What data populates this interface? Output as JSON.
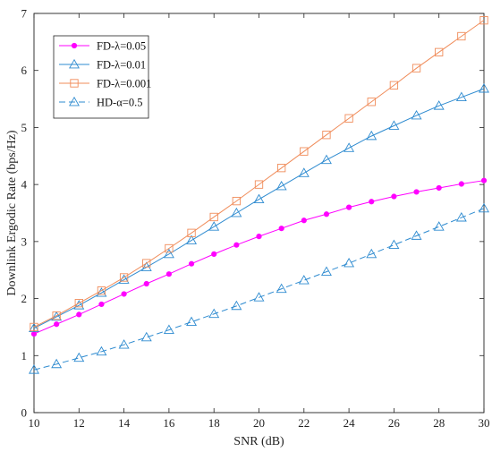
{
  "chart_data": {
    "type": "line",
    "xlabel": "SNR (dB)",
    "ylabel": "Downlink Ergodic Rate (bps/Hz)",
    "xlim": [
      10,
      30
    ],
    "ylim": [
      0,
      7
    ],
    "xticks": [
      "10",
      "12",
      "14",
      "16",
      "18",
      "20",
      "22",
      "24",
      "26",
      "28",
      "30"
    ],
    "yticks": [
      "0",
      "1",
      "2",
      "3",
      "4",
      "5",
      "6",
      "7"
    ],
    "grid": false,
    "legend_position": "top-left",
    "x": [
      10,
      11,
      12,
      13,
      14,
      15,
      16,
      17,
      18,
      19,
      20,
      21,
      22,
      23,
      24,
      25,
      26,
      27,
      28,
      29,
      30
    ],
    "series": [
      {
        "name": "FD-λ=0.05",
        "color": "#ff00ff",
        "marker": "dot",
        "values": [
          1.38,
          1.55,
          1.72,
          1.9,
          2.08,
          2.26,
          2.43,
          2.61,
          2.78,
          2.94,
          3.09,
          3.23,
          3.37,
          3.48,
          3.6,
          3.7,
          3.79,
          3.87,
          3.94,
          4.01,
          4.07
        ]
      },
      {
        "name": "FD-λ=0.01",
        "color": "#2e8bd0",
        "marker": "triangle",
        "values": [
          1.48,
          1.68,
          1.88,
          2.1,
          2.33,
          2.55,
          2.78,
          3.02,
          3.26,
          3.5,
          3.74,
          3.97,
          4.2,
          4.43,
          4.64,
          4.85,
          5.03,
          5.21,
          5.38,
          5.53,
          5.68
        ]
      },
      {
        "name": "FD-λ=0.001",
        "color": "#f08c5a",
        "marker": "square",
        "values": [
          1.5,
          1.7,
          1.92,
          2.14,
          2.37,
          2.62,
          2.88,
          3.15,
          3.43,
          3.71,
          4.0,
          4.29,
          4.58,
          4.87,
          5.16,
          5.45,
          5.74,
          6.04,
          6.32,
          6.6,
          6.88
        ]
      },
      {
        "name": "HD-α=0.5",
        "color": "#2e8bd0",
        "marker": "triangle",
        "dashed": true,
        "values": [
          0.75,
          0.85,
          0.96,
          1.07,
          1.19,
          1.32,
          1.45,
          1.59,
          1.73,
          1.87,
          2.02,
          2.17,
          2.32,
          2.47,
          2.62,
          2.78,
          2.94,
          3.1,
          3.26,
          3.42,
          3.58
        ]
      }
    ]
  }
}
